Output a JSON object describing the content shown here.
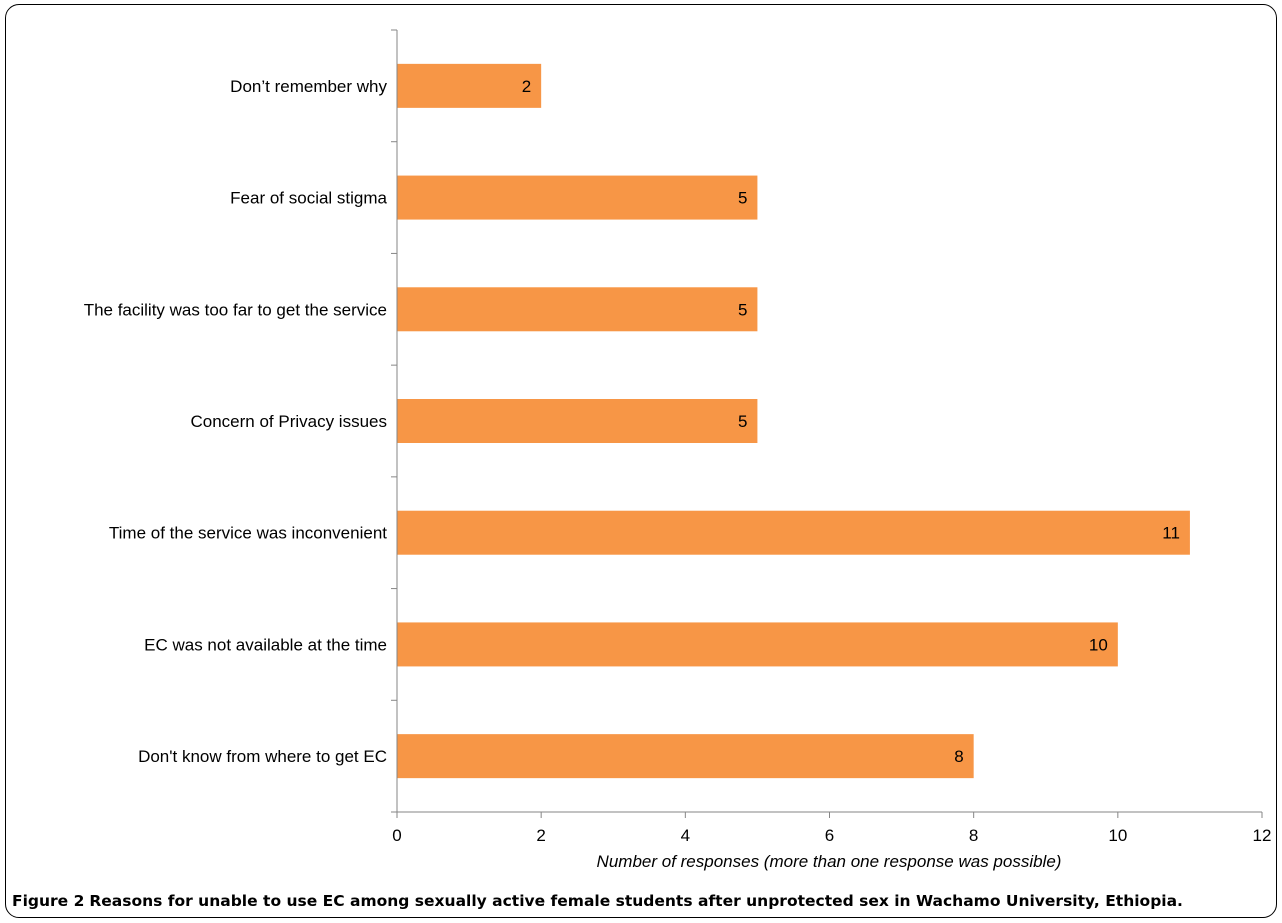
{
  "chart_data": {
    "type": "bar",
    "orientation": "horizontal",
    "categories": [
      "Don’t remember why",
      "Fear of social stigma",
      "The facility was too far to get the service",
      "Concern of Privacy issues",
      "Time of the service was inconvenient",
      "EC was not available at the time",
      "Don't know from where to get EC"
    ],
    "values": [
      2,
      5,
      5,
      5,
      11,
      10,
      8
    ],
    "data_labels": [
      "2",
      "5",
      "5",
      "5",
      "11",
      "10",
      "8"
    ],
    "xlabel": "Number of responses (more than one response was possible)",
    "ylabel": "",
    "xlim": [
      0,
      12
    ],
    "xticks": [
      "0",
      "2",
      "4",
      "6",
      "8",
      "10",
      "12"
    ],
    "bar_color": "#f79646",
    "grid": false
  },
  "caption": {
    "figure_number": "Figure 2",
    "text": "Reasons for unable to use EC among sexually active female students after unprotected sex in Wachamo University, Ethiopia."
  }
}
